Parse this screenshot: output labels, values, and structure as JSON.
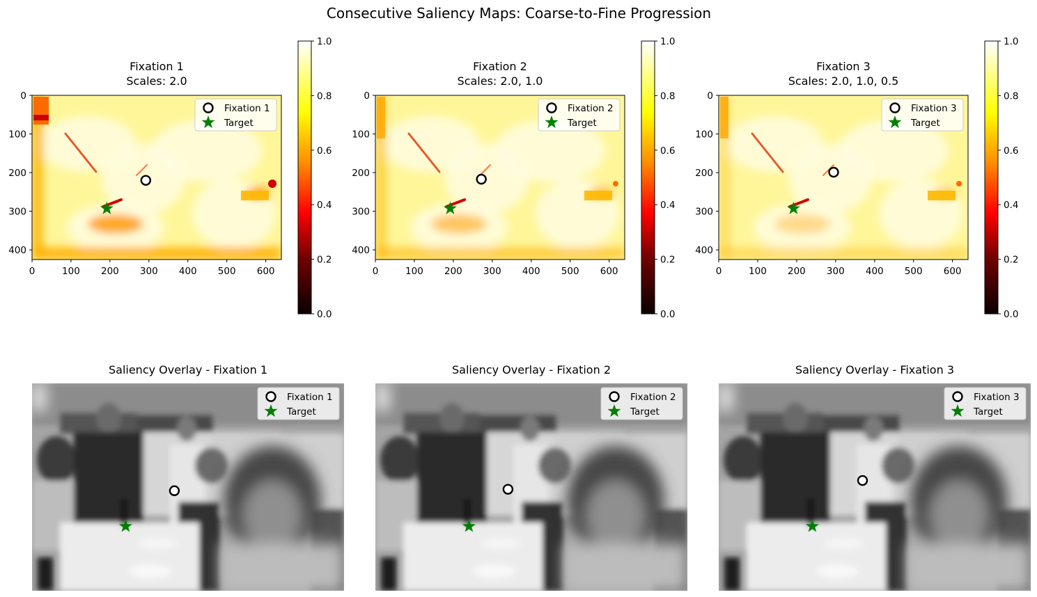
{
  "figure_title": "Consecutive Saliency Maps: Coarse-to-Fine Progression",
  "colors": {
    "fixation_edge": "#000000",
    "fixation_face": "#ffffff",
    "target": "#008000",
    "colormap": "hot"
  },
  "chart_data": [
    {
      "type": "heatmap",
      "title": "Fixation 1",
      "subtitle": "Scales: 2.0",
      "x_ticks": [
        0,
        100,
        200,
        300,
        400,
        500,
        600
      ],
      "y_ticks": [
        0,
        100,
        200,
        300,
        400
      ],
      "xlim": [
        0,
        640
      ],
      "ylim": [
        425,
        0
      ],
      "colorbar": {
        "ticks": [
          "0.0",
          "0.2",
          "0.4",
          "0.6",
          "0.8",
          "1.0"
        ],
        "range": [
          0,
          1
        ]
      },
      "fixation": {
        "x": 292,
        "y": 220
      },
      "target": {
        "x": 192,
        "y": 293
      },
      "legend": [
        "Fixation 1",
        "Target"
      ],
      "legend_loc": "upper right"
    },
    {
      "type": "heatmap",
      "title": "Fixation 2",
      "subtitle": "Scales: 2.0, 1.0",
      "x_ticks": [
        0,
        100,
        200,
        300,
        400,
        500,
        600
      ],
      "y_ticks": [
        0,
        100,
        200,
        300,
        400
      ],
      "xlim": [
        0,
        640
      ],
      "ylim": [
        425,
        0
      ],
      "colorbar": {
        "ticks": [
          "0.0",
          "0.2",
          "0.4",
          "0.6",
          "0.8",
          "1.0"
        ],
        "range": [
          0,
          1
        ]
      },
      "fixation": {
        "x": 272,
        "y": 217
      },
      "target": {
        "x": 192,
        "y": 293
      },
      "legend": [
        "Fixation 2",
        "Target"
      ],
      "legend_loc": "upper right"
    },
    {
      "type": "heatmap",
      "title": "Fixation 3",
      "subtitle": "Scales: 2.0, 1.0, 0.5",
      "x_ticks": [
        0,
        100,
        200,
        300,
        400,
        500,
        600
      ],
      "y_ticks": [
        0,
        100,
        200,
        300,
        400
      ],
      "xlim": [
        0,
        640
      ],
      "ylim": [
        425,
        0
      ],
      "colorbar": {
        "ticks": [
          "0.0",
          "0.2",
          "0.4",
          "0.6",
          "0.8",
          "1.0"
        ],
        "range": [
          0,
          1
        ]
      },
      "fixation": {
        "x": 295,
        "y": 199
      },
      "target": {
        "x": 192,
        "y": 293
      },
      "legend": [
        "Fixation 3",
        "Target"
      ],
      "legend_loc": "upper right"
    },
    {
      "type": "image-overlay",
      "title": "Saliency Overlay - Fixation 1",
      "fixation": {
        "x": 292,
        "y": 220
      },
      "target": {
        "x": 192,
        "y": 293
      },
      "legend": [
        "Fixation 1",
        "Target"
      ],
      "legend_loc": "upper right"
    },
    {
      "type": "image-overlay",
      "title": "Saliency Overlay - Fixation 2",
      "fixation": {
        "x": 272,
        "y": 217
      },
      "target": {
        "x": 192,
        "y": 293
      },
      "legend": [
        "Fixation 2",
        "Target"
      ],
      "legend_loc": "upper right"
    },
    {
      "type": "image-overlay",
      "title": "Saliency Overlay - Fixation 3",
      "fixation": {
        "x": 295,
        "y": 199
      },
      "target": {
        "x": 192,
        "y": 293
      },
      "legend": [
        "Fixation 3",
        "Target"
      ],
      "legend_loc": "upper right"
    }
  ]
}
